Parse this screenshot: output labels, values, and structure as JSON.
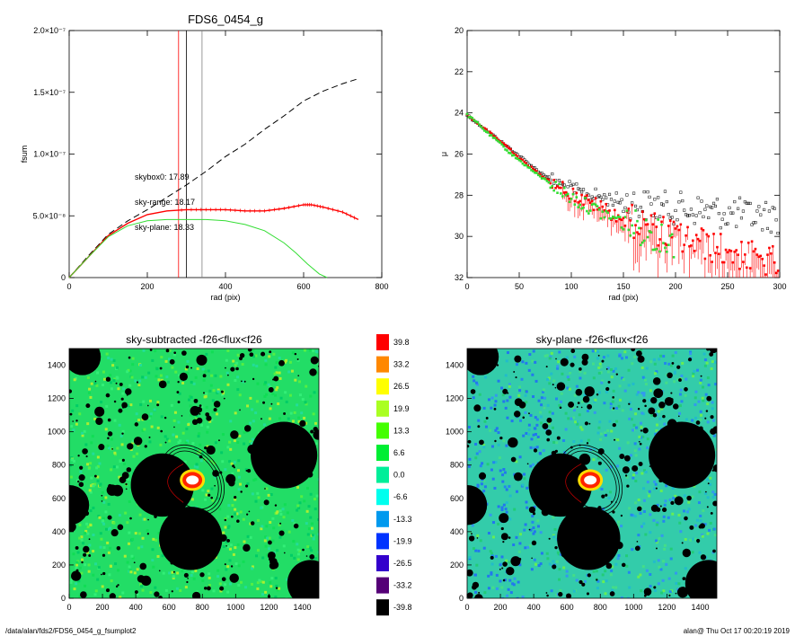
{
  "footer": {
    "left": "/data/alan/fds2/FDS6_0454_g_fsumplot2",
    "right": "alan@  Thu Oct 17 00:20:19 2019"
  },
  "chart_data": [
    {
      "type": "line",
      "title": "FDS6_0454_g",
      "xlabel": "rad (pix)",
      "ylabel": "fsum",
      "xlim": [
        0,
        800
      ],
      "ylim": [
        0,
        2e-07
      ],
      "xticks": [
        "0",
        "200",
        "400",
        "600",
        "800"
      ],
      "yticks": [
        "0",
        "5.0×10⁻⁸",
        "1.0×10⁻⁷",
        "1.5×10⁻⁷",
        "2.0×10⁻⁷"
      ],
      "vlines": [
        {
          "x": 280,
          "color": "#ff0000"
        },
        {
          "x": 300,
          "color": "#000000"
        },
        {
          "x": 340,
          "color": "#808080"
        }
      ],
      "annotations": [
        {
          "text": "skybox0: 17.89",
          "color": "#000000"
        },
        {
          "text": "sky-range: 18.17",
          "color": "#ff0000"
        },
        {
          "text": "sky-plane: 18.33",
          "color": "#33dd33"
        }
      ],
      "series": [
        {
          "color": "#000000",
          "style": "dashed",
          "x": [
            0,
            50,
            100,
            150,
            200,
            250,
            300,
            350,
            400,
            450,
            500,
            550,
            600,
            650,
            700,
            740
          ],
          "y": [
            0,
            1.8e-08,
            3.5e-08,
            4.6e-08,
            5.5e-08,
            6.5e-08,
            7.5e-08,
            8.6e-08,
            9.8e-08,
            1.08e-07,
            1.2e-07,
            1.31e-07,
            1.43e-07,
            1.51e-07,
            1.57e-07,
            1.61e-07
          ]
        },
        {
          "color": "#ff0000",
          "style": "solid",
          "x": [
            0,
            50,
            100,
            150,
            200,
            250,
            300,
            350,
            400,
            450,
            500,
            550,
            600,
            620,
            650,
            700,
            740
          ],
          "y": [
            0,
            1.7e-08,
            3.4e-08,
            4.4e-08,
            5.1e-08,
            5.4e-08,
            5.5e-08,
            5.5e-08,
            5.5e-08,
            5.4e-08,
            5.4e-08,
            5.6e-08,
            5.9e-08,
            5.9e-08,
            5.7e-08,
            5.3e-08,
            4.7e-08
          ]
        },
        {
          "color": "#33dd33",
          "style": "solid",
          "x": [
            0,
            50,
            100,
            150,
            200,
            250,
            300,
            350,
            400,
            450,
            500,
            550,
            580,
            610,
            640,
            660
          ],
          "y": [
            0,
            1.7e-08,
            3.3e-08,
            4.2e-08,
            4.6e-08,
            4.7e-08,
            4.7e-08,
            4.7e-08,
            4.6e-08,
            4.3e-08,
            3.8e-08,
            2.8e-08,
            2e-08,
            1.1e-08,
            3e-09,
            0
          ]
        }
      ]
    },
    {
      "type": "scatter",
      "title": "",
      "xlabel": "rad (pix)",
      "ylabel": "μ",
      "xlim": [
        0,
        300
      ],
      "ylim": [
        32,
        20
      ],
      "xticks": [
        "0",
        "50",
        "100",
        "150",
        "200",
        "250",
        "300"
      ],
      "yticks": [
        "20",
        "22",
        "24",
        "26",
        "28",
        "30",
        "32"
      ],
      "series": [
        {
          "color": "#000000",
          "marker": "square-open",
          "x": [
            0,
            10,
            20,
            30,
            40,
            50,
            60,
            70,
            80,
            90,
            100,
            110,
            120,
            130,
            140,
            150,
            160,
            170,
            180,
            190,
            200,
            210,
            220,
            230,
            240,
            250,
            260,
            270,
            280,
            290,
            300
          ],
          "y": [
            24.1,
            24.5,
            24.9,
            25.3,
            25.7,
            26.1,
            26.5,
            26.9,
            27.2,
            27.5,
            27.7,
            27.9,
            28.0,
            28.1,
            28.2,
            28.3,
            28.4,
            28.5,
            28.5,
            28.6,
            28.6,
            28.7,
            28.7,
            28.8,
            28.8,
            28.9,
            28.9,
            29.0,
            29.0,
            29.0,
            29.1
          ]
        },
        {
          "color": "#ff0000",
          "marker": "square-filled",
          "errorbars": true,
          "x": [
            0,
            10,
            20,
            30,
            40,
            50,
            60,
            70,
            80,
            90,
            100,
            110,
            120,
            130,
            140,
            150,
            160,
            170,
            180,
            190,
            200,
            210,
            220,
            230,
            240,
            250,
            260,
            270,
            280,
            290,
            300
          ],
          "y": [
            24.1,
            24.5,
            24.9,
            25.3,
            25.7,
            26.2,
            26.6,
            27.0,
            27.3,
            27.6,
            27.9,
            28.2,
            28.4,
            28.6,
            28.9,
            29.1,
            29.3,
            29.4,
            29.6,
            29.8,
            30.0,
            30.1,
            30.3,
            30.4,
            30.6,
            30.7,
            30.8,
            31.0,
            31.1,
            31.2,
            31.3
          ]
        },
        {
          "color": "#33dd33",
          "marker": "square-filled",
          "x": [
            0,
            10,
            20,
            30,
            40,
            50,
            60,
            70,
            80,
            90,
            100,
            110,
            120,
            130,
            140,
            150,
            160,
            170,
            180,
            190,
            200
          ],
          "y": [
            24.1,
            24.5,
            25.0,
            25.4,
            25.9,
            26.3,
            26.7,
            27.1,
            27.4,
            27.8,
            28.1,
            28.4,
            28.6,
            28.9,
            29.1,
            29.3,
            29.5,
            29.7,
            29.9,
            30.1,
            30.3
          ]
        }
      ]
    },
    {
      "type": "heatmap",
      "title": "sky-subtracted -f26<flux<f26",
      "xlim": [
        0,
        1500
      ],
      "ylim": [
        0,
        1500
      ],
      "xticks": [
        "0",
        "200",
        "400",
        "600",
        "800",
        "1000",
        "1200",
        "1400"
      ],
      "yticks": [
        "0",
        "200",
        "400",
        "600",
        "800",
        "1000",
        "1200",
        "1400"
      ],
      "base_color": "#22dd66"
    },
    {
      "type": "heatmap",
      "title": "sky-plane -f26<flux<f26",
      "xlim": [
        0,
        1500
      ],
      "ylim": [
        0,
        1500
      ],
      "xticks": [
        "0",
        "200",
        "400",
        "600",
        "800",
        "1000",
        "1200",
        "1400"
      ],
      "yticks": [
        "0",
        "200",
        "400",
        "600",
        "800",
        "1000",
        "1200",
        "1400"
      ],
      "base_color": "#33ccaa"
    }
  ],
  "colorbar": {
    "labels": [
      "39.8",
      "33.2",
      "26.5",
      "19.9",
      "13.3",
      "6.6",
      "0.0",
      "-6.6",
      "-13.3",
      "-19.9",
      "-26.5",
      "-33.2",
      "-39.8"
    ],
    "colors": [
      "#ff0000",
      "#ff8800",
      "#ffff00",
      "#aaff22",
      "#44ff00",
      "#00ee33",
      "#00ee99",
      "#00ffee",
      "#0099ee",
      "#0033ff",
      "#3300cc",
      "#550077",
      "#000000"
    ]
  },
  "masks": {
    "large": [
      {
        "cx": 560,
        "cy": 680,
        "r": 190
      },
      {
        "cx": 730,
        "cy": 360,
        "r": 190
      },
      {
        "cx": 1290,
        "cy": 860,
        "r": 200
      },
      {
        "cx": 1450,
        "cy": 90,
        "r": 140
      },
      {
        "cx": 80,
        "cy": 1450,
        "r": 110
      },
      {
        "cx": 0,
        "cy": 560,
        "r": 120
      }
    ],
    "galaxy": {
      "cx": 740,
      "cy": 710,
      "ring_r": [
        250,
        280,
        310
      ],
      "ring_ry": [
        200,
        220,
        240
      ]
    }
  }
}
